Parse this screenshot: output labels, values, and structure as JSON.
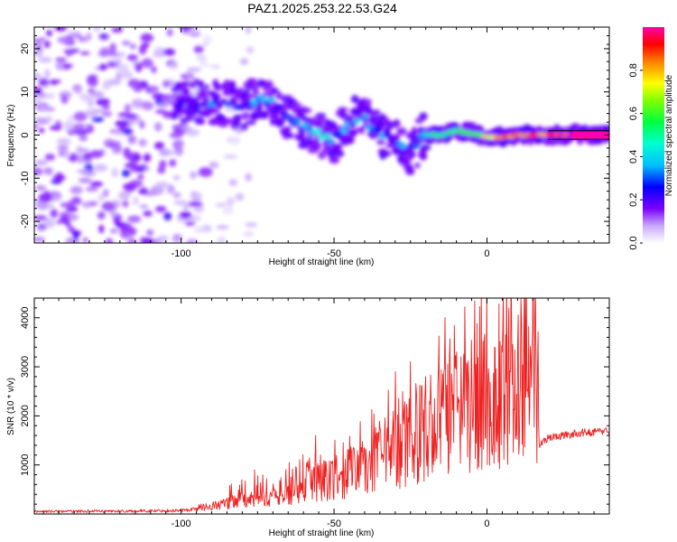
{
  "figure": {
    "title": "PAZ1.2025.253.22.53.G24"
  },
  "chart_data": [
    {
      "type": "heatmap",
      "name": "spectrogram",
      "xlabel": "Height of straight line (km)",
      "ylabel": "Frequency (Hz)",
      "xlim": [
        -148,
        40
      ],
      "ylim": [
        -25,
        25
      ],
      "xticks": [
        -100,
        -50,
        0
      ],
      "yticks": [
        -20,
        -10,
        0,
        10,
        20
      ],
      "colorbar": {
        "label": "Normalized spectral amplitude",
        "range": [
          0,
          1
        ],
        "ticks": [
          "0.0",
          "0.2",
          "0.4",
          "0.6",
          "0.8"
        ]
      },
      "ridge": [
        {
          "x": -100,
          "f": 7.5,
          "amp": 0.25
        },
        {
          "x": -95,
          "f": 7.5,
          "amp": 0.3
        },
        {
          "x": -90,
          "f": 8.0,
          "amp": 0.3
        },
        {
          "x": -85,
          "f": 7.0,
          "amp": 0.25
        },
        {
          "x": -80,
          "f": 6.5,
          "amp": 0.25
        },
        {
          "x": -75,
          "f": 8.5,
          "amp": 0.3
        },
        {
          "x": -70,
          "f": 7.0,
          "amp": 0.3
        },
        {
          "x": -65,
          "f": 4.0,
          "amp": 0.3
        },
        {
          "x": -60,
          "f": 2.0,
          "amp": 0.35
        },
        {
          "x": -55,
          "f": 0.5,
          "amp": 0.45
        },
        {
          "x": -50,
          "f": -1.0,
          "amp": 0.35
        },
        {
          "x": -45,
          "f": 3.0,
          "amp": 0.3
        },
        {
          "x": -40,
          "f": 4.0,
          "amp": 0.3
        },
        {
          "x": -35,
          "f": 0.0,
          "amp": 0.25
        },
        {
          "x": -30,
          "f": -2.0,
          "amp": 0.3
        },
        {
          "x": -25,
          "f": -4.0,
          "amp": 0.3
        },
        {
          "x": -20,
          "f": 0.0,
          "amp": 0.4
        },
        {
          "x": -15,
          "f": 0.0,
          "amp": 0.55
        },
        {
          "x": -10,
          "f": 1.0,
          "amp": 0.55
        },
        {
          "x": -5,
          "f": 0.5,
          "amp": 0.6
        },
        {
          "x": 0,
          "f": -0.5,
          "amp": 0.7
        },
        {
          "x": 5,
          "f": -0.5,
          "amp": 0.85
        },
        {
          "x": 10,
          "f": 0.0,
          "amp": 0.85
        },
        {
          "x": 15,
          "f": 0.0,
          "amp": 0.85
        },
        {
          "x": 20,
          "f": 0.0,
          "amp": 0.9
        },
        {
          "x": 25,
          "f": 0.0,
          "amp": 0.95
        },
        {
          "x": 30,
          "f": 0.0,
          "amp": 1.0
        },
        {
          "x": 35,
          "f": 0.0,
          "amp": 1.0
        },
        {
          "x": 40,
          "f": 0.0,
          "amp": 1.0
        }
      ],
      "noise_region": {
        "x": [
          -148,
          -85
        ],
        "f": [
          -25,
          25
        ],
        "amp": 0.15
      }
    },
    {
      "type": "line",
      "name": "snr",
      "xlabel": "Height of straight line (km)",
      "ylabel": "SNR (10 * v/v)",
      "xlim": [
        -148,
        40
      ],
      "ylim": [
        0,
        4400
      ],
      "xticks": [
        -100,
        -50,
        0
      ],
      "yticks": [
        1000,
        2000,
        3000,
        4000
      ],
      "color": "#ee2222",
      "series": [
        {
          "name": "SNR",
          "envelope_x": [
            -148,
            -120,
            -100,
            -90,
            -80,
            -70,
            -60,
            -50,
            -40,
            -30,
            -20,
            -10,
            0,
            10,
            13,
            16,
            17,
            20,
            30,
            40
          ],
          "envelope_y": [
            80,
            90,
            110,
            200,
            350,
            400,
            600,
            800,
            1000,
            1400,
            1800,
            2100,
            2300,
            2600,
            3500,
            2800,
            1400,
            1550,
            1650,
            1700
          ],
          "spikes": [
            {
              "x": -76,
              "y": 900
            },
            {
              "x": -56,
              "y": 1600
            },
            {
              "x": -40,
              "y": 1300
            },
            {
              "x": -30,
              "y": 2900
            },
            {
              "x": -25,
              "y": 3100
            },
            {
              "x": -20,
              "y": 2800
            },
            {
              "x": -16,
              "y": 2650
            },
            {
              "x": -10,
              "y": 3300
            },
            {
              "x": -1,
              "y": 3550
            },
            {
              "x": 5,
              "y": 3300
            },
            {
              "x": 10,
              "y": 3500
            },
            {
              "x": 13,
              "y": 4450
            },
            {
              "x": 16,
              "y": 3500
            }
          ]
        }
      ]
    }
  ]
}
